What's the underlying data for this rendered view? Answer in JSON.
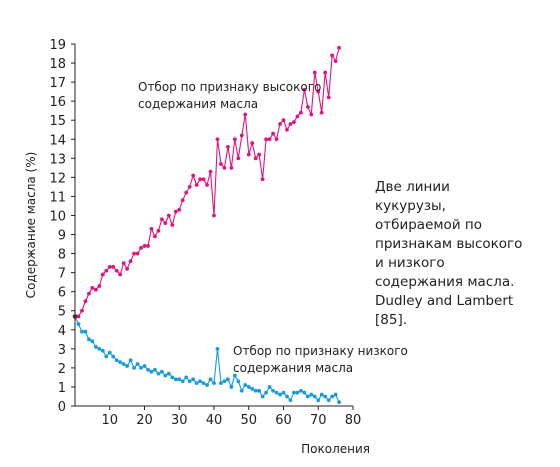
{
  "caption": "Две линии кукурузы, отбираемой по признакам высокого и низкого содержания масла. Dudley and Lambert [85].",
  "chart_data": {
    "type": "line",
    "title": "",
    "xlabel": "Поколения",
    "ylabel": "Содержание масла (%)",
    "xlim": [
      0,
      80
    ],
    "ylim": [
      0,
      19
    ],
    "xticks": [
      10,
      20,
      30,
      40,
      50,
      60,
      70,
      80
    ],
    "yticks": [
      0,
      1,
      2,
      3,
      4,
      5,
      6,
      7,
      8,
      9,
      10,
      11,
      12,
      13,
      14,
      15,
      16,
      17,
      18,
      19
    ],
    "grid": false,
    "start_point": [
      0,
      4.7
    ],
    "series": [
      {
        "name": "Отбор по признаку высокого содержания масла",
        "label_lines": [
          "Отбор по признаку высокого",
          "содержания масла"
        ],
        "color": "#e0147f",
        "x": [
          1,
          2,
          3,
          4,
          5,
          6,
          7,
          8,
          9,
          10,
          11,
          12,
          13,
          14,
          15,
          16,
          17,
          18,
          19,
          20,
          21,
          22,
          23,
          24,
          25,
          26,
          27,
          28,
          29,
          30,
          31,
          32,
          33,
          34,
          35,
          36,
          37,
          38,
          39,
          40,
          41,
          42,
          43,
          44,
          45,
          46,
          47,
          48,
          49,
          50,
          51,
          52,
          53,
          54,
          55,
          56,
          57,
          58,
          59,
          60,
          61,
          62,
          63,
          64,
          65,
          66,
          67,
          68,
          69,
          70,
          71,
          72,
          73,
          74,
          75,
          76
        ],
        "y": [
          4.7,
          5.0,
          5.5,
          5.9,
          6.2,
          6.1,
          6.3,
          6.9,
          7.1,
          7.3,
          7.3,
          7.1,
          6.9,
          7.5,
          7.2,
          7.6,
          8.0,
          8.0,
          8.3,
          8.4,
          8.4,
          9.3,
          8.9,
          9.2,
          9.8,
          9.6,
          10.0,
          9.5,
          10.2,
          10.3,
          10.8,
          11.2,
          11.5,
          12.1,
          11.6,
          11.9,
          11.9,
          11.6,
          12.3,
          10.0,
          14.0,
          12.7,
          12.5,
          13.6,
          12.5,
          14.0,
          13.0,
          14.2,
          15.3,
          13.2,
          13.8,
          13.0,
          13.2,
          11.9,
          14.0,
          14.0,
          14.3,
          14.0,
          14.8,
          15.0,
          14.5,
          14.8,
          14.9,
          15.2,
          15.4,
          16.6,
          15.7,
          15.3,
          17.5,
          16.5,
          15.4,
          17.5,
          16.2,
          18.4,
          18.1,
          18.8
        ]
      },
      {
        "name": "Отбор по признаку низкого содержания масла",
        "label_lines": [
          "Отбор по признаку низкого",
          "содержания масла"
        ],
        "color": "#1a9bd7",
        "x": [
          1,
          2,
          3,
          4,
          5,
          6,
          7,
          8,
          9,
          10,
          11,
          12,
          13,
          14,
          15,
          16,
          17,
          18,
          19,
          20,
          21,
          22,
          23,
          24,
          25,
          26,
          27,
          28,
          29,
          30,
          31,
          32,
          33,
          34,
          35,
          36,
          37,
          38,
          39,
          40,
          41,
          42,
          43,
          44,
          45,
          46,
          47,
          48,
          49,
          50,
          51,
          52,
          53,
          54,
          55,
          56,
          57,
          58,
          59,
          60,
          61,
          62,
          63,
          64,
          65,
          66,
          67,
          68,
          69,
          70,
          71,
          72,
          73,
          74,
          75,
          76
        ],
        "y": [
          4.3,
          3.9,
          3.9,
          3.5,
          3.4,
          3.1,
          3.0,
          2.9,
          2.6,
          2.8,
          2.6,
          2.4,
          2.3,
          2.2,
          2.1,
          2.4,
          2.0,
          2.2,
          2.0,
          2.1,
          1.9,
          1.8,
          1.9,
          1.7,
          1.8,
          1.6,
          1.7,
          1.5,
          1.4,
          1.4,
          1.3,
          1.5,
          1.3,
          1.4,
          1.2,
          1.3,
          1.2,
          1.1,
          1.4,
          1.2,
          3.0,
          1.2,
          1.3,
          1.4,
          1.0,
          1.6,
          1.3,
          0.8,
          1.1,
          1.0,
          0.9,
          0.8,
          0.8,
          0.5,
          0.7,
          1.0,
          0.8,
          0.7,
          0.6,
          0.7,
          0.5,
          0.3,
          0.7,
          0.7,
          0.8,
          0.7,
          0.5,
          0.6,
          0.5,
          0.3,
          0.6,
          0.5,
          0.3,
          0.5,
          0.6,
          0.2
        ]
      }
    ]
  }
}
